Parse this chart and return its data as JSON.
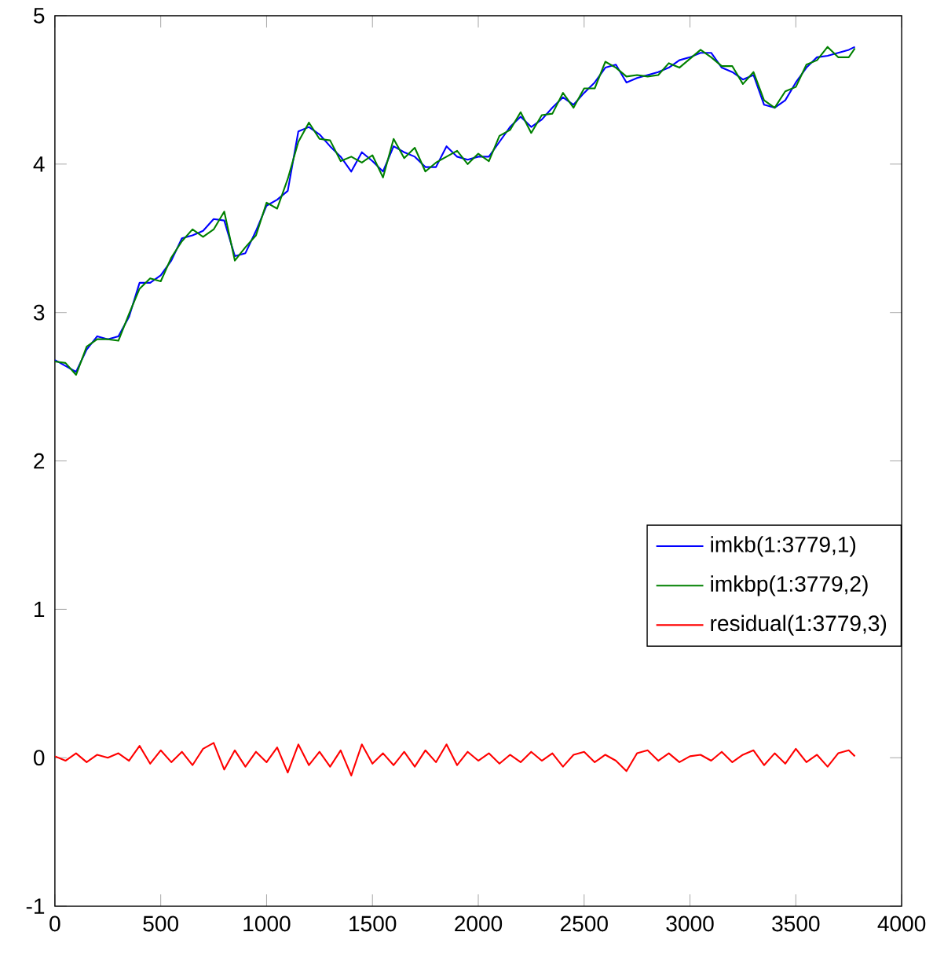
{
  "chart_data": {
    "type": "line",
    "x": [
      0,
      50,
      100,
      150,
      200,
      250,
      300,
      350,
      400,
      450,
      500,
      550,
      600,
      650,
      700,
      750,
      800,
      850,
      900,
      950,
      1000,
      1050,
      1100,
      1150,
      1200,
      1250,
      1300,
      1350,
      1400,
      1450,
      1500,
      1550,
      1600,
      1650,
      1700,
      1750,
      1800,
      1850,
      1900,
      1950,
      2000,
      2050,
      2100,
      2150,
      2200,
      2250,
      2300,
      2350,
      2400,
      2450,
      2500,
      2550,
      2600,
      2650,
      2700,
      2750,
      2800,
      2850,
      2900,
      2950,
      3000,
      3050,
      3100,
      3150,
      3200,
      3250,
      3300,
      3350,
      3400,
      3450,
      3500,
      3550,
      3600,
      3650,
      3700,
      3750,
      3779
    ],
    "series": [
      {
        "name": "imkb(1:3779,1)",
        "color": "#0000ff",
        "values": [
          2.68,
          2.64,
          2.6,
          2.75,
          2.84,
          2.82,
          2.84,
          2.97,
          3.2,
          3.2,
          3.25,
          3.35,
          3.5,
          3.52,
          3.55,
          3.63,
          3.62,
          3.38,
          3.4,
          3.55,
          3.72,
          3.76,
          3.82,
          4.22,
          4.25,
          4.2,
          4.12,
          4.05,
          3.95,
          4.08,
          4.02,
          3.95,
          4.12,
          4.08,
          4.05,
          3.98,
          3.98,
          4.12,
          4.05,
          4.03,
          4.05,
          4.05,
          4.15,
          4.25,
          4.32,
          4.25,
          4.3,
          4.38,
          4.45,
          4.4,
          4.48,
          4.55,
          4.65,
          4.67,
          4.55,
          4.58,
          4.6,
          4.62,
          4.65,
          4.7,
          4.72,
          4.75,
          4.75,
          4.65,
          4.62,
          4.57,
          4.6,
          4.4,
          4.38,
          4.43,
          4.55,
          4.65,
          4.72,
          4.73,
          4.75,
          4.77,
          4.79
        ]
      },
      {
        "name": "imkbp(1:3779,2)",
        "color": "#008000",
        "values": [
          2.67,
          2.66,
          2.58,
          2.77,
          2.82,
          2.82,
          2.81,
          2.99,
          3.16,
          3.23,
          3.21,
          3.37,
          3.48,
          3.56,
          3.51,
          3.56,
          3.68,
          3.35,
          3.44,
          3.52,
          3.74,
          3.7,
          3.9,
          4.15,
          4.28,
          4.17,
          4.16,
          4.02,
          4.05,
          4.01,
          4.06,
          3.91,
          4.17,
          4.04,
          4.11,
          3.95,
          4.01,
          4.05,
          4.09,
          4.0,
          4.07,
          4.02,
          4.19,
          4.23,
          4.35,
          4.21,
          4.33,
          4.34,
          4.48,
          4.38,
          4.51,
          4.51,
          4.69,
          4.65,
          4.59,
          4.6,
          4.59,
          4.6,
          4.68,
          4.65,
          4.71,
          4.77,
          4.72,
          4.66,
          4.66,
          4.54,
          4.62,
          4.43,
          4.38,
          4.49,
          4.52,
          4.67,
          4.7,
          4.79,
          4.72,
          4.72,
          4.78
        ]
      },
      {
        "name": "residual(1:3779,3)",
        "color": "#ff0000",
        "values": [
          0.01,
          -0.02,
          0.03,
          -0.03,
          0.02,
          0.0,
          0.03,
          -0.02,
          0.08,
          -0.04,
          0.05,
          -0.03,
          0.04,
          -0.05,
          0.06,
          0.1,
          -0.08,
          0.05,
          -0.06,
          0.04,
          -0.03,
          0.07,
          -0.1,
          0.09,
          -0.05,
          0.04,
          -0.06,
          0.05,
          -0.12,
          0.09,
          -0.04,
          0.03,
          -0.05,
          0.04,
          -0.06,
          0.05,
          -0.03,
          0.09,
          -0.05,
          0.04,
          -0.02,
          0.03,
          -0.04,
          0.02,
          -0.03,
          0.04,
          -0.02,
          0.03,
          -0.06,
          0.02,
          0.04,
          -0.03,
          0.02,
          -0.02,
          -0.09,
          0.03,
          0.05,
          -0.02,
          0.03,
          -0.03,
          0.01,
          0.02,
          -0.02,
          0.04,
          -0.03,
          0.02,
          0.05,
          -0.05,
          0.03,
          -0.04,
          0.06,
          -0.03,
          0.02,
          -0.06,
          0.03,
          0.05,
          0.01
        ]
      }
    ],
    "xlim": [
      0,
      4000
    ],
    "ylim": [
      -1,
      5
    ],
    "xticks": [
      0,
      500,
      1000,
      1500,
      2000,
      2500,
      3000,
      3500,
      4000
    ],
    "yticks": [
      -1,
      0,
      1,
      2,
      3,
      4,
      5
    ],
    "legend": "right",
    "grid": false,
    "line_style": "solid"
  }
}
